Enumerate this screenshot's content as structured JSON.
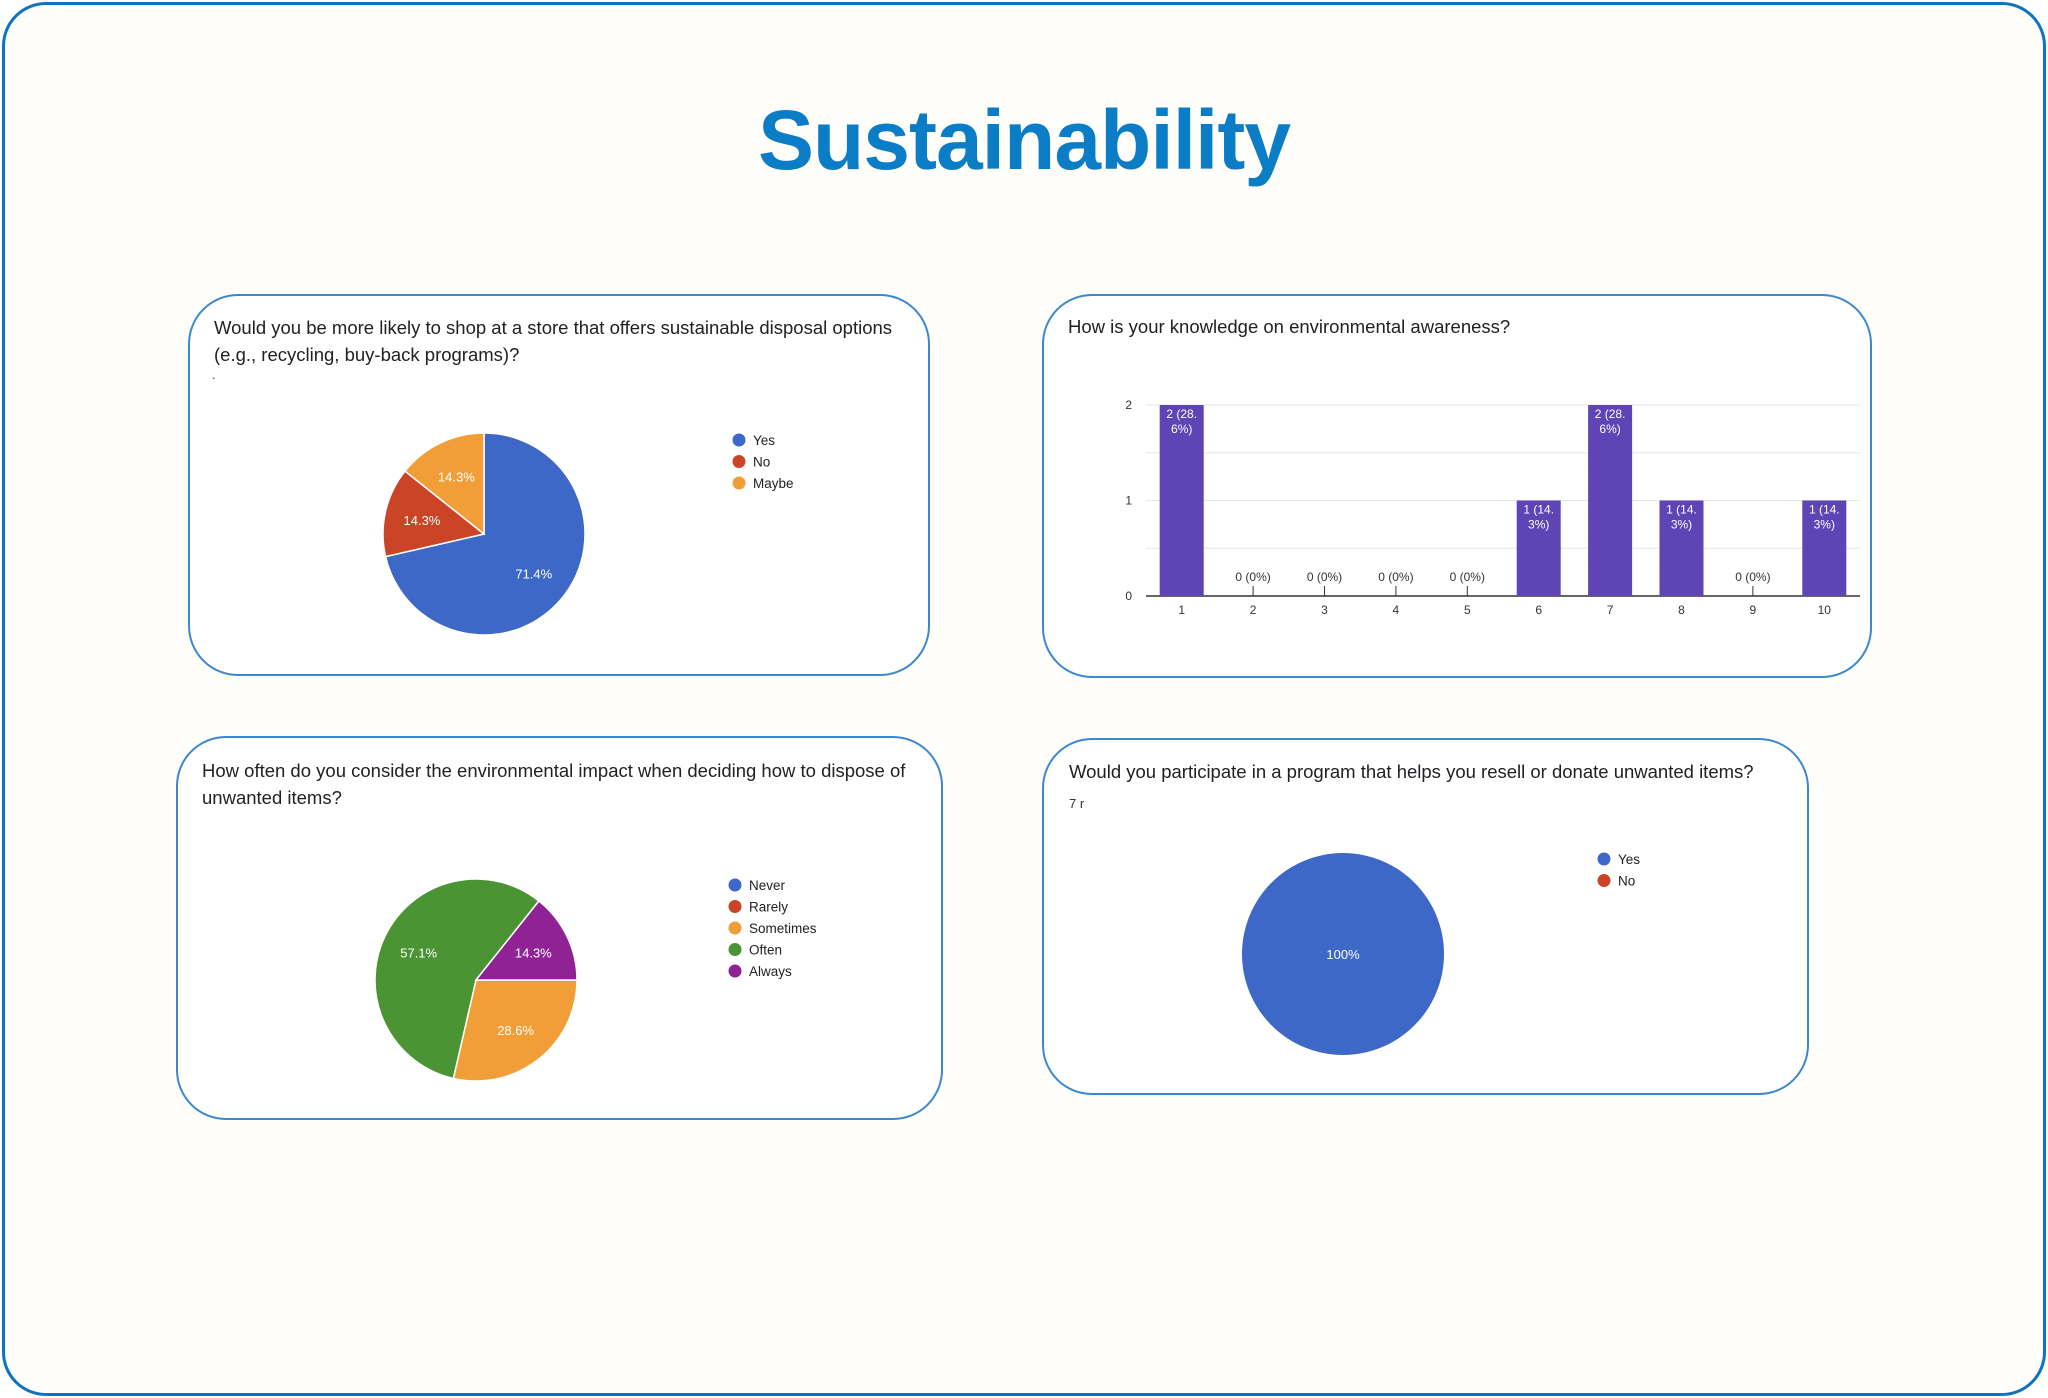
{
  "page": {
    "title": "Sustainability"
  },
  "colors": {
    "title": "#0b7dc7",
    "border": "#3c88cf"
  },
  "chart_data": [
    {
      "type": "pie",
      "title": "Would you be more likely to shop at a store that offers sustainable disposal options (e.g., recycling, buy-back programs)?",
      "note": ".",
      "legend": "right",
      "slices": [
        {
          "label": "Yes",
          "value": 71.4,
          "display": "71.4%",
          "color": "#3d68c8"
        },
        {
          "label": "No",
          "value": 14.3,
          "display": "14.3%",
          "color": "#cc4426"
        },
        {
          "label": "Maybe",
          "value": 14.3,
          "display": "14.3%",
          "color": "#f19e38"
        }
      ]
    },
    {
      "type": "bar",
      "title": "How is your knowledge on environmental awareness?",
      "categories": [
        "1",
        "2",
        "3",
        "4",
        "5",
        "6",
        "7",
        "8",
        "9",
        "10"
      ],
      "values": [
        2,
        0,
        0,
        0,
        0,
        1,
        2,
        1,
        0,
        1
      ],
      "labels": [
        "2 (28.6%)",
        "0 (0%)",
        "0 (0%)",
        "0 (0%)",
        "0 (0%)",
        "1 (14.3%)",
        "2 (28.6%)",
        "1 (14.3%)",
        "0 (0%)",
        "1 (14.3%)"
      ],
      "yticks": [
        "0",
        "1",
        "2"
      ],
      "ylim": [
        0,
        2
      ],
      "color": "#5f44b6",
      "grid": true
    },
    {
      "type": "pie",
      "title": "How often do you consider the environmental impact when deciding how to dispose of unwanted items?",
      "legend": "right",
      "slices": [
        {
          "label": "Never",
          "value": 0,
          "display": "",
          "color": "#3d68c8"
        },
        {
          "label": "Rarely",
          "value": 0,
          "display": "",
          "color": "#cc4426"
        },
        {
          "label": "Sometimes",
          "value": 28.6,
          "display": "28.6%",
          "color": "#f19e38"
        },
        {
          "label": "Often",
          "value": 57.1,
          "display": "57.1%",
          "color": "#4a9433"
        },
        {
          "label": "Always",
          "value": 14.3,
          "display": "14.3%",
          "color": "#8f2396"
        }
      ]
    },
    {
      "type": "pie",
      "title": "Would you participate in a program that helps you resell or donate unwanted items?",
      "note": "7 r",
      "legend": "right",
      "slices": [
        {
          "label": "Yes",
          "value": 100,
          "display": "100%",
          "color": "#3d68c8"
        },
        {
          "label": "No",
          "value": 0,
          "display": "",
          "color": "#cc4426"
        }
      ]
    }
  ]
}
